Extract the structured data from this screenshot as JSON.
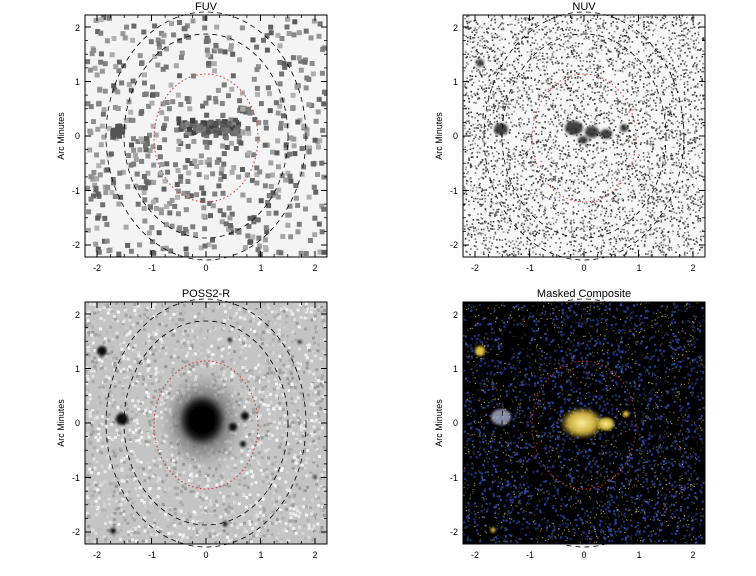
{
  "panels": [
    {
      "id": "fuv",
      "title": "FUV",
      "ylabel": "Arc Minutes",
      "style": "fuv",
      "x_ticks": [
        "-2",
        "-1",
        "0",
        "1",
        "2"
      ],
      "y_ticks": [
        "2",
        "1",
        "0",
        "-1",
        "-2"
      ]
    },
    {
      "id": "nuv",
      "title": "NUV",
      "ylabel": "Arc Minutes",
      "style": "nuv",
      "x_ticks": [
        "-2",
        "-1",
        "0",
        "1",
        "2"
      ],
      "y_ticks": [
        "2",
        "1",
        "0",
        "-1",
        "-2"
      ]
    },
    {
      "id": "poss2r",
      "title": "POSS2-R",
      "ylabel": "Arc Minutes",
      "style": "optical",
      "x_ticks": [
        "-2",
        "-1",
        "0",
        "1",
        "2"
      ],
      "y_ticks": [
        "2",
        "1",
        "0",
        "-1",
        "-2"
      ]
    },
    {
      "id": "composite",
      "title": "Masked Composite",
      "ylabel": "Arc Minutes",
      "style": "composite",
      "x_ticks": [
        "-2",
        "-1",
        "0",
        "1",
        "2"
      ],
      "y_ticks": [
        "2",
        "1",
        "0",
        "-1",
        "-2"
      ]
    }
  ],
  "colors": {
    "inner_ellipse": "#d03030",
    "outer_ellipses": "#000000",
    "composite_uv": "#3050c0",
    "composite_optical": "#e0c040"
  }
}
